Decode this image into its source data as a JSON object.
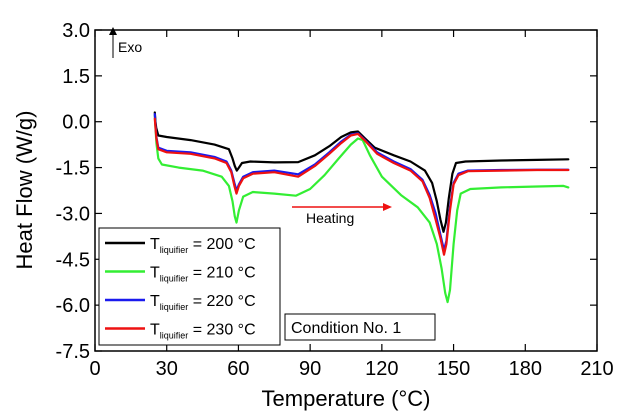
{
  "chart_data": {
    "type": "line",
    "xlabel": "Temperature (°C)",
    "ylabel": "Heat Flow (W/g)",
    "xlim": [
      0,
      210
    ],
    "ylim": [
      -7.5,
      3.0
    ],
    "xticks": [
      "0",
      "30",
      "60",
      "90",
      "120",
      "150",
      "180",
      "210"
    ],
    "yticks": [
      "3.0",
      "1.5",
      "0.0",
      "-1.5",
      "-3.0",
      "-4.5",
      "-6.0",
      "-7.5"
    ],
    "annotations": {
      "exo": "Exo",
      "heating": "Heating",
      "condition": "Condition No. 1"
    },
    "legend": {
      "position": "bottom-left",
      "prefix": "T",
      "subscript": "liquifier"
    },
    "series": [
      {
        "name": "T liquifier = 200 °C",
        "legend_value": " = 200 °C",
        "color": "#000000",
        "points": [
          [
            25.0,
            0.3
          ],
          [
            25.3,
            0.0
          ],
          [
            25.6,
            -0.2
          ],
          [
            26.5,
            -0.45
          ],
          [
            30,
            -0.5
          ],
          [
            40,
            -0.6
          ],
          [
            50,
            -0.75
          ],
          [
            56,
            -0.9
          ],
          [
            57.5,
            -1.2
          ],
          [
            58.5,
            -1.45
          ],
          [
            59.3,
            -1.6
          ],
          [
            60.2,
            -1.5
          ],
          [
            61.5,
            -1.35
          ],
          [
            65,
            -1.3
          ],
          [
            75,
            -1.33
          ],
          [
            85,
            -1.32
          ],
          [
            92,
            -1.1
          ],
          [
            98,
            -0.8
          ],
          [
            103,
            -0.5
          ],
          [
            107,
            -0.35
          ],
          [
            110,
            -0.32
          ],
          [
            113,
            -0.55
          ],
          [
            117,
            -0.85
          ],
          [
            125,
            -1.1
          ],
          [
            132,
            -1.3
          ],
          [
            138,
            -1.6
          ],
          [
            141,
            -2.0
          ],
          [
            143,
            -2.6
          ],
          [
            144.5,
            -3.2
          ],
          [
            145.8,
            -3.6
          ],
          [
            146.8,
            -3.3
          ],
          [
            148,
            -2.5
          ],
          [
            149.5,
            -1.7
          ],
          [
            151,
            -1.35
          ],
          [
            155,
            -1.3
          ],
          [
            170,
            -1.27
          ],
          [
            185,
            -1.25
          ],
          [
            198,
            -1.23
          ]
        ]
      },
      {
        "name": "T liquifier = 210 °C",
        "legend_value": " = 210 °C",
        "color": "#33ee33",
        "points": [
          [
            25.0,
            0.2
          ],
          [
            25.3,
            -0.2
          ],
          [
            25.7,
            -0.7
          ],
          [
            26.5,
            -1.2
          ],
          [
            28,
            -1.4
          ],
          [
            35,
            -1.5
          ],
          [
            45,
            -1.6
          ],
          [
            53,
            -1.8
          ],
          [
            56,
            -2.1
          ],
          [
            57.5,
            -2.6
          ],
          [
            58.5,
            -3.1
          ],
          [
            59.2,
            -3.3
          ],
          [
            60.2,
            -2.9
          ],
          [
            62,
            -2.45
          ],
          [
            66,
            -2.3
          ],
          [
            75,
            -2.35
          ],
          [
            84,
            -2.42
          ],
          [
            90,
            -2.2
          ],
          [
            96,
            -1.75
          ],
          [
            102,
            -1.2
          ],
          [
            107,
            -0.75
          ],
          [
            110,
            -0.55
          ],
          [
            112,
            -0.6
          ],
          [
            115,
            -1.1
          ],
          [
            120,
            -1.8
          ],
          [
            128,
            -2.4
          ],
          [
            135,
            -2.8
          ],
          [
            140,
            -3.3
          ],
          [
            143,
            -4.0
          ],
          [
            145,
            -4.8
          ],
          [
            146.5,
            -5.6
          ],
          [
            147.5,
            -5.9
          ],
          [
            148.5,
            -5.5
          ],
          [
            150,
            -4.0
          ],
          [
            151.5,
            -2.9
          ],
          [
            153,
            -2.35
          ],
          [
            157,
            -2.2
          ],
          [
            170,
            -2.15
          ],
          [
            185,
            -2.12
          ],
          [
            196,
            -2.1
          ],
          [
            198,
            -2.15
          ]
        ]
      },
      {
        "name": "T liquifier = 220 °C",
        "legend_value": " = 220 °C",
        "color": "#1a1aee",
        "points": [
          [
            25.0,
            0.25
          ],
          [
            25.3,
            -0.1
          ],
          [
            25.7,
            -0.5
          ],
          [
            26.5,
            -0.85
          ],
          [
            30,
            -0.95
          ],
          [
            40,
            -1.0
          ],
          [
            50,
            -1.15
          ],
          [
            55,
            -1.3
          ],
          [
            57,
            -1.6
          ],
          [
            58.3,
            -2.0
          ],
          [
            59.2,
            -2.25
          ],
          [
            60.2,
            -2.05
          ],
          [
            62,
            -1.8
          ],
          [
            66,
            -1.65
          ],
          [
            75,
            -1.6
          ],
          [
            85,
            -1.72
          ],
          [
            92,
            -1.4
          ],
          [
            98,
            -1.0
          ],
          [
            103,
            -0.65
          ],
          [
            107,
            -0.42
          ],
          [
            110,
            -0.38
          ],
          [
            113,
            -0.6
          ],
          [
            118,
            -1.0
          ],
          [
            125,
            -1.3
          ],
          [
            132,
            -1.55
          ],
          [
            137,
            -1.9
          ],
          [
            140,
            -2.4
          ],
          [
            142.5,
            -3.0
          ],
          [
            144.5,
            -3.7
          ],
          [
            146,
            -4.2
          ],
          [
            147,
            -3.9
          ],
          [
            148.5,
            -2.8
          ],
          [
            150,
            -2.0
          ],
          [
            152,
            -1.7
          ],
          [
            156,
            -1.6
          ],
          [
            170,
            -1.58
          ],
          [
            185,
            -1.57
          ],
          [
            198,
            -1.57
          ]
        ]
      },
      {
        "name": "T liquifier = 230 °C",
        "legend_value": " = 230 °C",
        "color": "#ee1111",
        "points": [
          [
            25.0,
            0.1
          ],
          [
            25.3,
            -0.2
          ],
          [
            25.7,
            -0.55
          ],
          [
            26.5,
            -0.9
          ],
          [
            30,
            -1.0
          ],
          [
            40,
            -1.05
          ],
          [
            50,
            -1.2
          ],
          [
            55,
            -1.35
          ],
          [
            57,
            -1.65
          ],
          [
            58.3,
            -2.1
          ],
          [
            59.2,
            -2.35
          ],
          [
            60.2,
            -2.1
          ],
          [
            62,
            -1.85
          ],
          [
            66,
            -1.7
          ],
          [
            75,
            -1.65
          ],
          [
            85,
            -1.8
          ],
          [
            92,
            -1.45
          ],
          [
            98,
            -1.05
          ],
          [
            103,
            -0.7
          ],
          [
            107,
            -0.45
          ],
          [
            110,
            -0.4
          ],
          [
            113,
            -0.62
          ],
          [
            118,
            -1.05
          ],
          [
            125,
            -1.35
          ],
          [
            132,
            -1.6
          ],
          [
            137,
            -1.95
          ],
          [
            140,
            -2.5
          ],
          [
            142.5,
            -3.2
          ],
          [
            144.5,
            -3.8
          ],
          [
            146,
            -4.35
          ],
          [
            147,
            -4.0
          ],
          [
            148.5,
            -2.9
          ],
          [
            150,
            -2.05
          ],
          [
            152,
            -1.75
          ],
          [
            156,
            -1.62
          ],
          [
            170,
            -1.6
          ],
          [
            185,
            -1.58
          ],
          [
            198,
            -1.58
          ]
        ]
      }
    ]
  }
}
